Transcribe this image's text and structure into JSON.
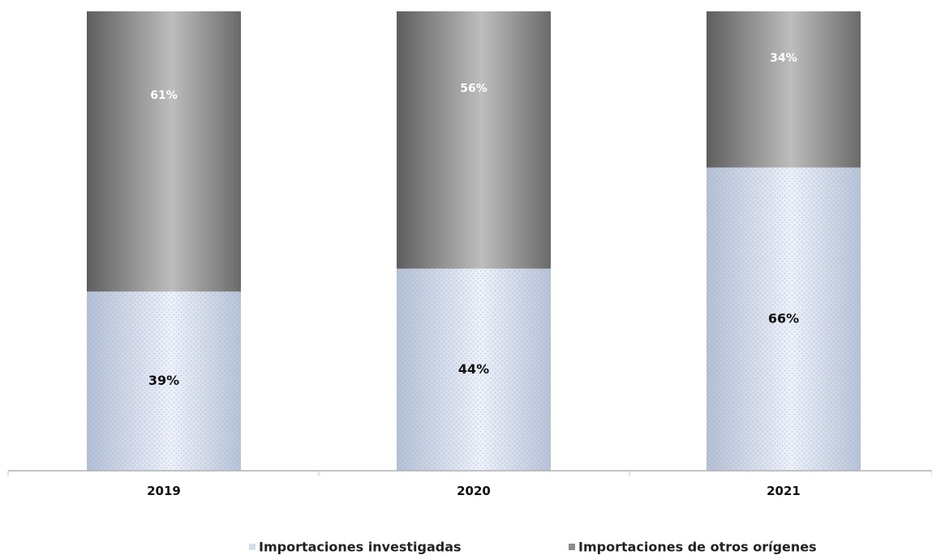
{
  "chart_data": {
    "type": "bar",
    "stacked": true,
    "categories": [
      "2019",
      "2020",
      "2021"
    ],
    "series": [
      {
        "name": "Importaciones investigadas",
        "values": [
          39,
          44,
          66
        ],
        "labels": [
          "39%",
          "44%",
          "66%"
        ],
        "color": "#d8e2f2"
      },
      {
        "name": "Importaciones de otros orígenes",
        "values": [
          61,
          56,
          34
        ],
        "labels": [
          "61%",
          "56%",
          "34%"
        ],
        "color": "#8c8c8c"
      }
    ],
    "ylim": [
      0,
      100
    ],
    "grid": false,
    "legend_position": "bottom"
  }
}
